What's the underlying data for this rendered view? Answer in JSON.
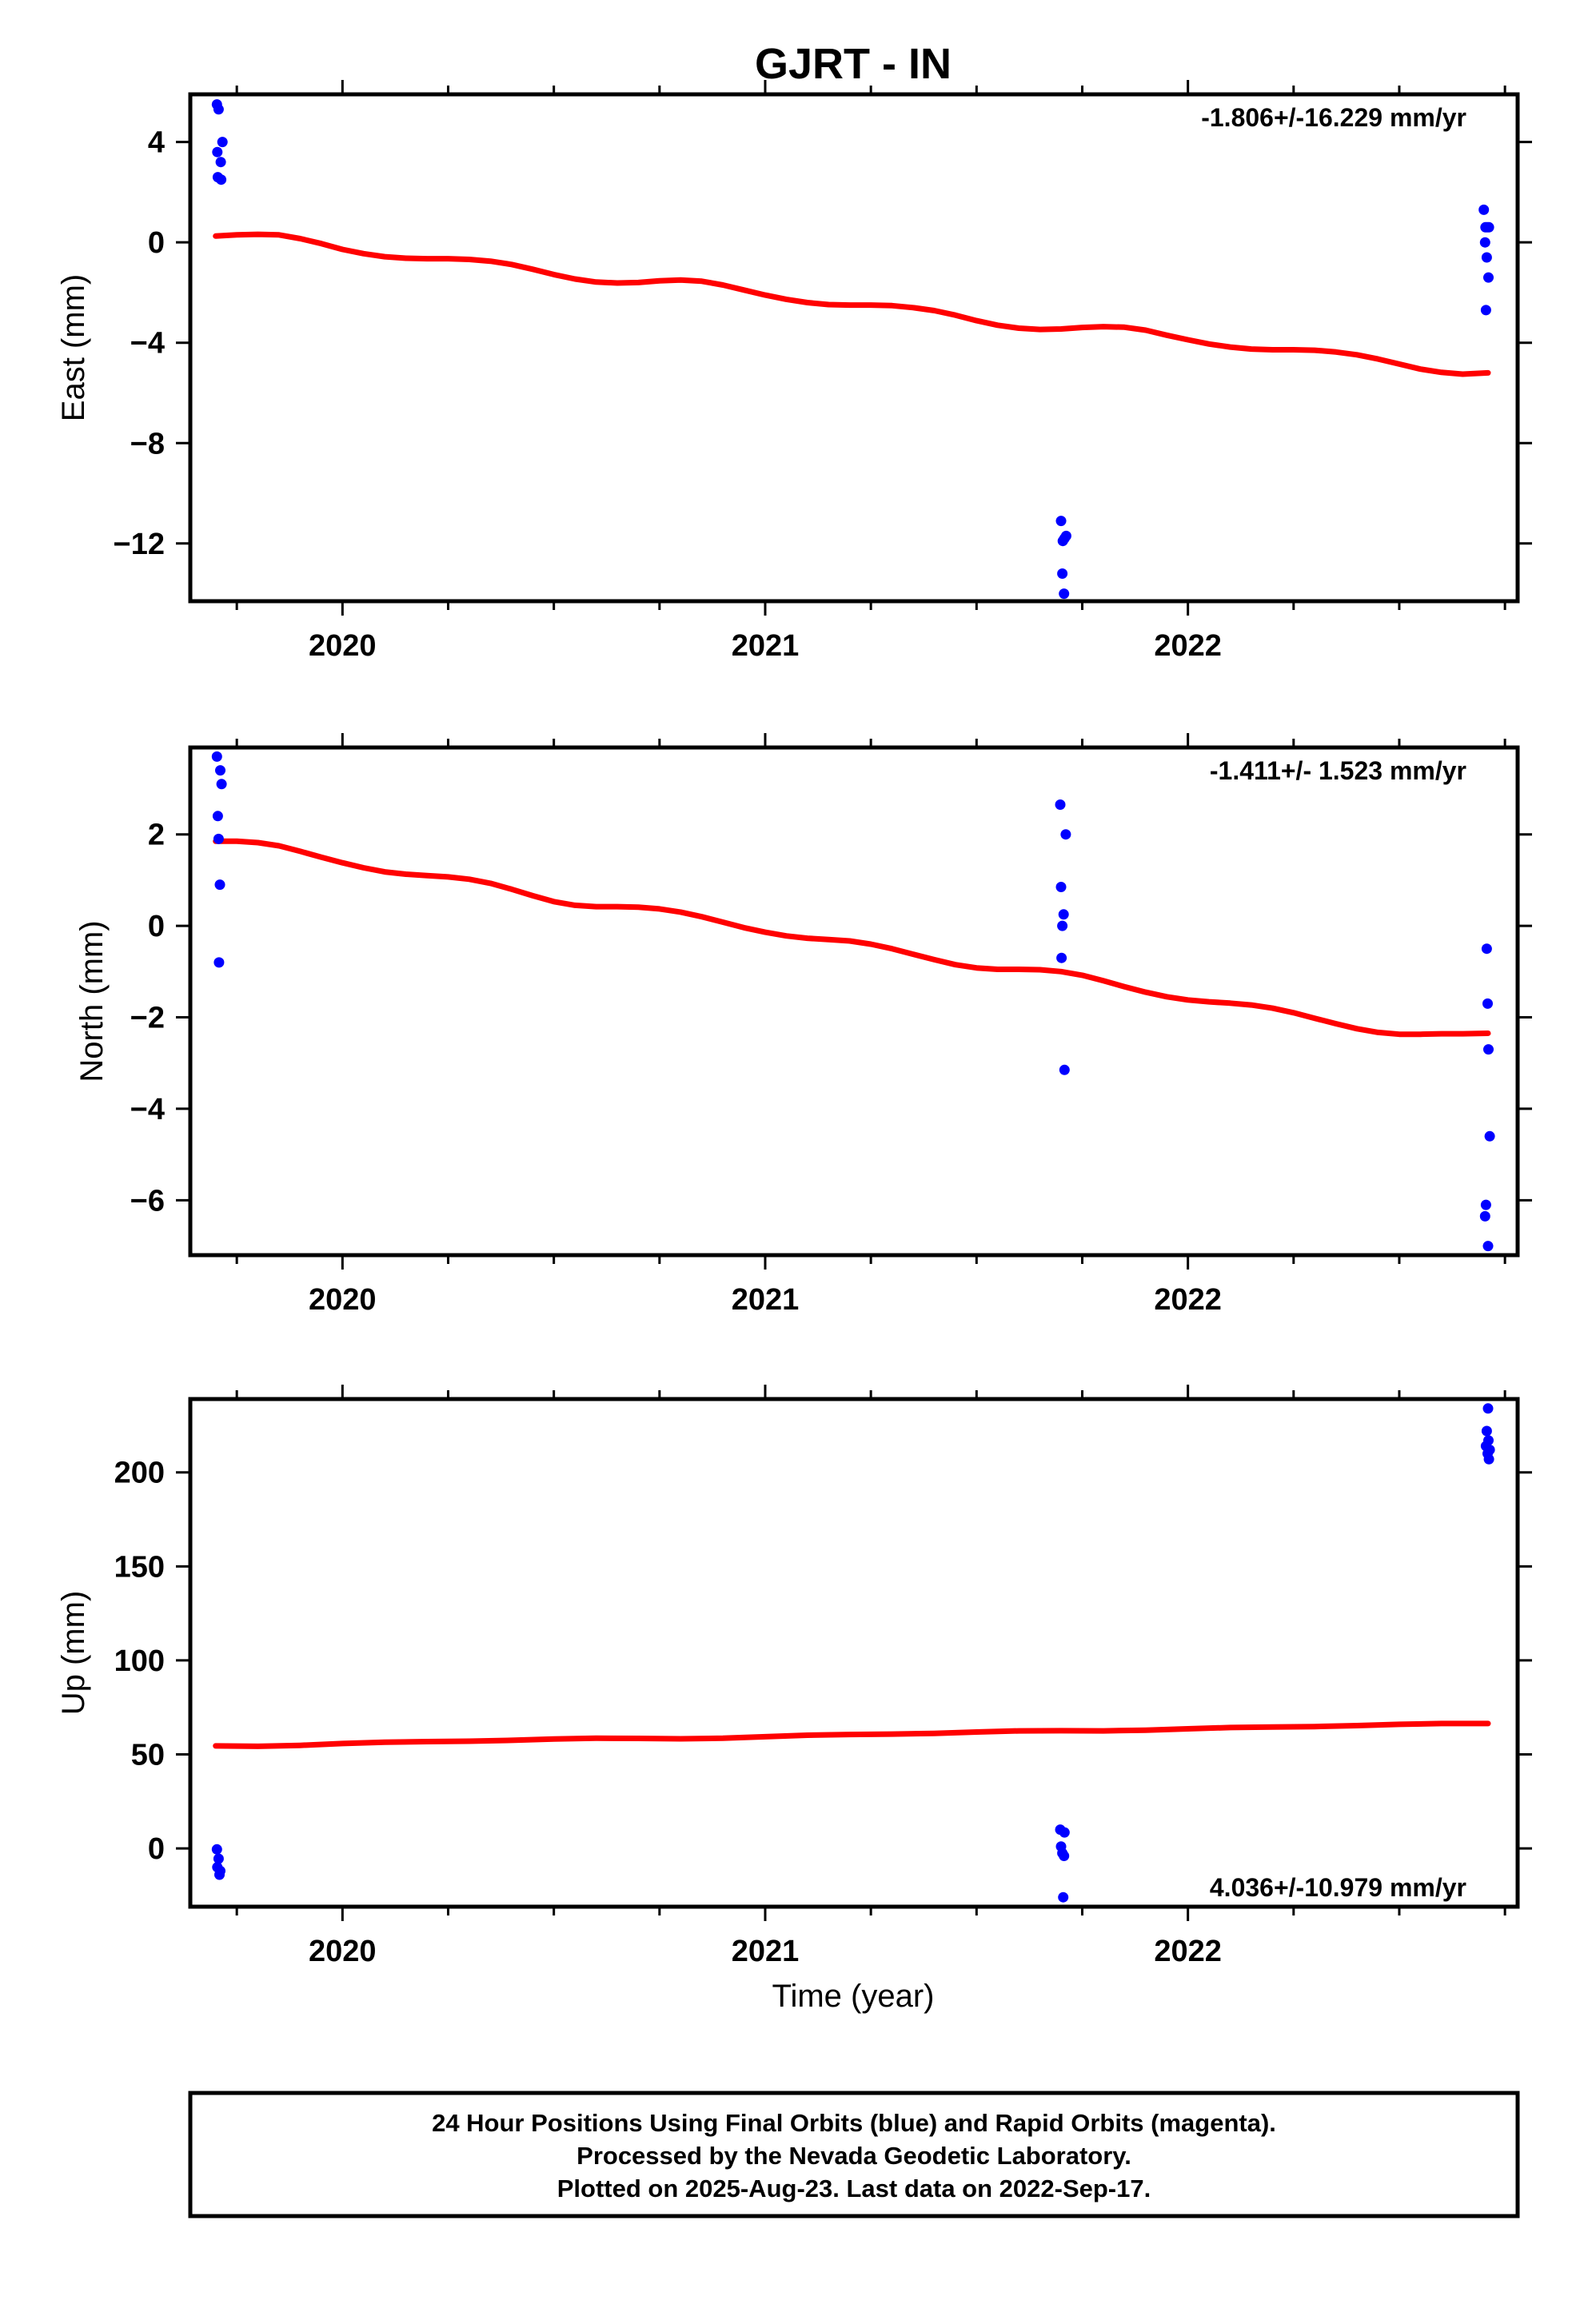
{
  "title": "GJRT - IN",
  "xlabel": "Time (year)",
  "footer": {
    "line1": "24 Hour Positions Using Final Orbits (blue) and Rapid Orbits (magenta).",
    "line2": "Processed by the Nevada Geodetic Laboratory.",
    "line3": "Plotted on 2025-Aug-23. Last data on 2022-Sep-17."
  },
  "colors": {
    "final_orbits": "#0000ff",
    "model_fit": "#ff0000",
    "frame": "#000000"
  },
  "chart_data": [
    {
      "type": "scatter",
      "ylabel": "East (mm)",
      "rate_label": "-1.806+/-16.229 mm/yr",
      "xlim": [
        2019.64,
        2022.78
      ],
      "ylim": [
        -14.3,
        5.9
      ],
      "x_ticks": [
        2020,
        2021,
        2022
      ],
      "x_tick_labels": [
        "2020",
        "2021",
        "2022"
      ],
      "y_ticks": [
        4,
        0,
        -4,
        -8,
        -12
      ],
      "y_tick_labels": [
        "4",
        "0",
        "−4",
        "−8",
        "−12"
      ],
      "grid": false,
      "series": [
        {
          "x": [
            2019.703,
            2019.707,
            2019.716,
            2019.704,
            2019.712,
            2019.705,
            2019.713,
            2021.7,
            2021.704,
            2021.708,
            2021.712,
            2021.703,
            2021.707,
            2022.7,
            2022.704,
            2022.708,
            2022.712,
            2022.703,
            2022.707,
            2022.711,
            2022.705
          ],
          "y": [
            5.5,
            5.3,
            4.0,
            3.6,
            3.2,
            2.6,
            2.5,
            -11.1,
            -11.9,
            -11.8,
            -11.7,
            -13.2,
            -14.0,
            1.3,
            0.6,
            0.6,
            0.6,
            0.0,
            -0.6,
            -1.4,
            -2.7
          ]
        }
      ],
      "model": {
        "x": [
          2019.7,
          2019.75,
          2019.8,
          2019.85,
          2019.9,
          2019.95,
          2020.0,
          2020.05,
          2020.1,
          2020.15,
          2020.2,
          2020.25,
          2020.3,
          2020.35,
          2020.4,
          2020.45,
          2020.5,
          2020.55,
          2020.6,
          2020.65,
          2020.7,
          2020.75,
          2020.8,
          2020.85,
          2020.9,
          2020.95,
          2021.0,
          2021.05,
          2021.1,
          2021.15,
          2021.2,
          2021.25,
          2021.3,
          2021.35,
          2021.4,
          2021.45,
          2021.5,
          2021.55,
          2021.6,
          2021.65,
          2021.7,
          2021.75,
          2021.8,
          2021.85,
          2021.9,
          2021.95,
          2022.0,
          2022.05,
          2022.1,
          2022.15,
          2022.2,
          2022.25,
          2022.3,
          2022.35,
          2022.4,
          2022.45,
          2022.5,
          2022.55,
          2022.6,
          2022.65,
          2022.71
        ],
        "y": [
          0.25,
          0.3,
          0.32,
          0.3,
          0.15,
          -0.05,
          -0.28,
          -0.45,
          -0.57,
          -0.63,
          -0.65,
          -0.65,
          -0.68,
          -0.75,
          -0.88,
          -1.07,
          -1.28,
          -1.46,
          -1.58,
          -1.62,
          -1.6,
          -1.53,
          -1.5,
          -1.55,
          -1.7,
          -1.9,
          -2.1,
          -2.27,
          -2.4,
          -2.48,
          -2.5,
          -2.5,
          -2.52,
          -2.6,
          -2.72,
          -2.9,
          -3.12,
          -3.3,
          -3.42,
          -3.47,
          -3.45,
          -3.39,
          -3.36,
          -3.38,
          -3.5,
          -3.7,
          -3.88,
          -4.05,
          -4.17,
          -4.25,
          -4.28,
          -4.28,
          -4.3,
          -4.37,
          -4.48,
          -4.65,
          -4.85,
          -5.05,
          -5.18,
          -5.25,
          -5.2
        ]
      }
    },
    {
      "type": "scatter",
      "ylabel": "North (mm)",
      "rate_label": "-1.411+/- 1.523 mm/yr",
      "xlim": [
        2019.64,
        2022.78
      ],
      "ylim": [
        -7.2,
        3.9
      ],
      "x_ticks": [
        2020,
        2021,
        2022
      ],
      "x_tick_labels": [
        "2020",
        "2021",
        "2022"
      ],
      "y_ticks": [
        2,
        0,
        -2,
        -4,
        -6
      ],
      "y_tick_labels": [
        "2",
        "0",
        "−2",
        "−4",
        "−6"
      ],
      "grid": false,
      "series": [
        {
          "x": [
            2019.703,
            2019.711,
            2019.714,
            2019.705,
            2019.707,
            2019.71,
            2019.708,
            2021.698,
            2021.711,
            2021.7,
            2021.706,
            2021.703,
            2021.701,
            2021.708,
            2022.707,
            2022.709,
            2022.711,
            2022.714,
            2022.705,
            2022.703,
            2022.71
          ],
          "y": [
            3.7,
            3.4,
            3.1,
            2.4,
            1.9,
            0.9,
            -0.8,
            2.65,
            2.0,
            0.85,
            0.25,
            0.0,
            -0.7,
            -3.15,
            -0.5,
            -1.7,
            -2.7,
            -4.6,
            -6.1,
            -6.35,
            -7.0
          ]
        }
      ],
      "model": {
        "x": [
          2019.7,
          2019.75,
          2019.8,
          2019.85,
          2019.9,
          2019.95,
          2020.0,
          2020.05,
          2020.1,
          2020.15,
          2020.2,
          2020.25,
          2020.3,
          2020.35,
          2020.4,
          2020.45,
          2020.5,
          2020.55,
          2020.6,
          2020.65,
          2020.7,
          2020.75,
          2020.8,
          2020.85,
          2020.9,
          2020.95,
          2021.0,
          2021.05,
          2021.1,
          2021.15,
          2021.2,
          2021.25,
          2021.3,
          2021.35,
          2021.4,
          2021.45,
          2021.5,
          2021.55,
          2021.6,
          2021.65,
          2021.7,
          2021.75,
          2021.8,
          2021.85,
          2021.9,
          2021.95,
          2022.0,
          2022.05,
          2022.1,
          2022.15,
          2022.2,
          2022.25,
          2022.3,
          2022.35,
          2022.4,
          2022.45,
          2022.5,
          2022.55,
          2022.6,
          2022.65,
          2022.71
        ],
        "y": [
          1.85,
          1.85,
          1.82,
          1.75,
          1.63,
          1.5,
          1.38,
          1.27,
          1.18,
          1.13,
          1.1,
          1.07,
          1.02,
          0.93,
          0.8,
          0.66,
          0.53,
          0.45,
          0.42,
          0.42,
          0.41,
          0.37,
          0.3,
          0.2,
          0.08,
          -0.04,
          -0.14,
          -0.22,
          -0.27,
          -0.3,
          -0.33,
          -0.4,
          -0.5,
          -0.62,
          -0.74,
          -0.85,
          -0.92,
          -0.95,
          -0.95,
          -0.96,
          -1.0,
          -1.08,
          -1.2,
          -1.33,
          -1.45,
          -1.55,
          -1.62,
          -1.66,
          -1.69,
          -1.73,
          -1.8,
          -1.9,
          -2.02,
          -2.14,
          -2.25,
          -2.33,
          -2.37,
          -2.37,
          -2.36,
          -2.36,
          -2.35
        ]
      }
    },
    {
      "type": "scatter",
      "ylabel": "Up (mm)",
      "rate_label": "4.036+/-10.979 mm/yr",
      "xlim": [
        2019.64,
        2022.78
      ],
      "ylim": [
        -31,
        239
      ],
      "x_ticks": [
        2020,
        2021,
        2022
      ],
      "x_tick_labels": [
        "2020",
        "2021",
        "2022"
      ],
      "y_ticks": [
        200,
        150,
        100,
        50,
        0
      ],
      "y_tick_labels": [
        "200",
        "150",
        "100",
        "50",
        "0"
      ],
      "grid": false,
      "series": [
        {
          "x": [
            2019.703,
            2019.707,
            2019.704,
            2019.711,
            2019.709,
            2021.698,
            2021.708,
            2021.7,
            2021.703,
            2021.707,
            2021.705,
            2022.71,
            2022.707,
            2022.711,
            2022.705,
            2022.714,
            2022.709,
            2022.712
          ],
          "y": [
            -0.5,
            -5.5,
            -10,
            -12,
            -14,
            10,
            8.5,
            1,
            -2.5,
            -4,
            -26,
            234,
            222,
            217,
            214,
            212,
            210,
            207
          ]
        }
      ],
      "model": {
        "x": [
          2019.7,
          2019.8,
          2019.9,
          2020.0,
          2020.1,
          2020.2,
          2020.3,
          2020.4,
          2020.5,
          2020.6,
          2020.7,
          2020.8,
          2020.9,
          2021.0,
          2021.1,
          2021.2,
          2021.3,
          2021.4,
          2021.5,
          2021.6,
          2021.7,
          2021.8,
          2021.9,
          2022.0,
          2022.1,
          2022.2,
          2022.3,
          2022.4,
          2022.5,
          2022.6,
          2022.71
        ],
        "y": [
          54.5,
          54.3,
          54.8,
          55.8,
          56.5,
          56.8,
          57.0,
          57.5,
          58.2,
          58.6,
          58.5,
          58.3,
          58.6,
          59.4,
          60.2,
          60.6,
          60.8,
          61.2,
          61.9,
          62.5,
          62.6,
          62.5,
          62.9,
          63.6,
          64.3,
          64.6,
          64.8,
          65.3,
          66.0,
          66.4,
          66.4
        ]
      }
    }
  ]
}
